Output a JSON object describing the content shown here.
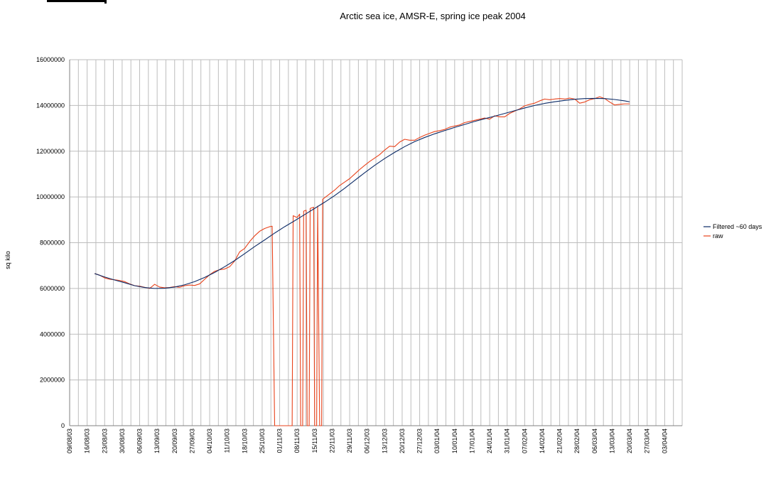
{
  "chart_data": {
    "type": "line",
    "title": "Arctic sea ice, AMSR-E, spring ice peak 2004",
    "xlabel": "",
    "ylabel": "sq kilo",
    "ylim": [
      0,
      16000000
    ],
    "yticks": [
      0,
      2000000,
      4000000,
      6000000,
      8000000,
      10000000,
      12000000,
      14000000,
      16000000
    ],
    "ytick_labels": [
      "0",
      "2000000",
      "4000000",
      "6000000",
      "8000000",
      "10000000",
      "12000000",
      "14000000",
      "16000000"
    ],
    "x_range_days": [
      0,
      245
    ],
    "x_ticks": [
      {
        "day": 0,
        "label": "09/08/03"
      },
      {
        "day": 7,
        "label": "16/08/03"
      },
      {
        "day": 14,
        "label": "23/08/03"
      },
      {
        "day": 21,
        "label": "30/08/03"
      },
      {
        "day": 28,
        "label": "06/09/03"
      },
      {
        "day": 35,
        "label": "13/09/03"
      },
      {
        "day": 42,
        "label": "20/09/03"
      },
      {
        "day": 49,
        "label": "27/09/03"
      },
      {
        "day": 56,
        "label": "04/10/03"
      },
      {
        "day": 63,
        "label": "11/10/03"
      },
      {
        "day": 70,
        "label": "18/10/03"
      },
      {
        "day": 77,
        "label": "25/10/03"
      },
      {
        "day": 84,
        "label": "01/11/03"
      },
      {
        "day": 91,
        "label": "08/11/03"
      },
      {
        "day": 98,
        "label": "15/11/03"
      },
      {
        "day": 105,
        "label": "22/11/03"
      },
      {
        "day": 112,
        "label": "29/11/03"
      },
      {
        "day": 119,
        "label": "06/12/03"
      },
      {
        "day": 126,
        "label": "13/12/03"
      },
      {
        "day": 133,
        "label": "20/12/03"
      },
      {
        "day": 140,
        "label": "27/12/03"
      },
      {
        "day": 147,
        "label": "03/01/04"
      },
      {
        "day": 154,
        "label": "10/01/04"
      },
      {
        "day": 161,
        "label": "17/01/04"
      },
      {
        "day": 168,
        "label": "24/01/04"
      },
      {
        "day": 175,
        "label": "31/01/04"
      },
      {
        "day": 182,
        "label": "07/02/04"
      },
      {
        "day": 189,
        "label": "14/02/04"
      },
      {
        "day": 196,
        "label": "21/02/04"
      },
      {
        "day": 203,
        "label": "28/02/04"
      },
      {
        "day": 210,
        "label": "06/03/04"
      },
      {
        "day": 217,
        "label": "13/03/04"
      },
      {
        "day": 224,
        "label": "20/03/04"
      },
      {
        "day": 231,
        "label": "27/03/04"
      },
      {
        "day": 238,
        "label": "03/04/04"
      }
    ],
    "grid": true,
    "legend_position": "right",
    "series": [
      {
        "name": "Filtered ~60 days",
        "color": "#0b2a66",
        "points": [
          [
            10,
            6650000
          ],
          [
            14,
            6500000
          ],
          [
            18,
            6370000
          ],
          [
            22,
            6250000
          ],
          [
            26,
            6120000
          ],
          [
            30,
            6040000
          ],
          [
            34,
            6000000
          ],
          [
            38,
            6010000
          ],
          [
            42,
            6060000
          ],
          [
            46,
            6160000
          ],
          [
            50,
            6300000
          ],
          [
            54,
            6480000
          ],
          [
            58,
            6700000
          ],
          [
            62,
            6950000
          ],
          [
            66,
            7220000
          ],
          [
            70,
            7520000
          ],
          [
            74,
            7830000
          ],
          [
            78,
            8120000
          ],
          [
            82,
            8420000
          ],
          [
            86,
            8700000
          ],
          [
            90,
            8960000
          ],
          [
            94,
            9230000
          ],
          [
            98,
            9500000
          ],
          [
            102,
            9770000
          ],
          [
            106,
            10060000
          ],
          [
            110,
            10380000
          ],
          [
            114,
            10720000
          ],
          [
            118,
            11060000
          ],
          [
            122,
            11380000
          ],
          [
            126,
            11680000
          ],
          [
            130,
            11950000
          ],
          [
            134,
            12200000
          ],
          [
            138,
            12420000
          ],
          [
            142,
            12600000
          ],
          [
            146,
            12760000
          ],
          [
            150,
            12900000
          ],
          [
            154,
            13040000
          ],
          [
            158,
            13170000
          ],
          [
            162,
            13300000
          ],
          [
            166,
            13420000
          ],
          [
            170,
            13530000
          ],
          [
            174,
            13650000
          ],
          [
            178,
            13770000
          ],
          [
            182,
            13890000
          ],
          [
            186,
            14000000
          ],
          [
            190,
            14090000
          ],
          [
            194,
            14160000
          ],
          [
            198,
            14220000
          ],
          [
            202,
            14270000
          ],
          [
            206,
            14300000
          ],
          [
            210,
            14310000
          ],
          [
            214,
            14300000
          ],
          [
            218,
            14260000
          ],
          [
            222,
            14200000
          ],
          [
            224,
            14160000
          ]
        ]
      },
      {
        "name": "raw",
        "color": "#e8431c",
        "points": [
          [
            10,
            6650000
          ],
          [
            12,
            6580000
          ],
          [
            14,
            6460000
          ],
          [
            16,
            6400000
          ],
          [
            18,
            6380000
          ],
          [
            20,
            6350000
          ],
          [
            22,
            6300000
          ],
          [
            24,
            6200000
          ],
          [
            26,
            6120000
          ],
          [
            28,
            6100000
          ],
          [
            30,
            6050000
          ],
          [
            32,
            6000000
          ],
          [
            34,
            6180000
          ],
          [
            36,
            6060000
          ],
          [
            38,
            6030000
          ],
          [
            40,
            6040000
          ],
          [
            42,
            6080000
          ],
          [
            44,
            6050000
          ],
          [
            46,
            6120000
          ],
          [
            48,
            6150000
          ],
          [
            50,
            6130000
          ],
          [
            52,
            6200000
          ],
          [
            54,
            6400000
          ],
          [
            56,
            6600000
          ],
          [
            58,
            6750000
          ],
          [
            60,
            6820000
          ],
          [
            62,
            6850000
          ],
          [
            64,
            6950000
          ],
          [
            66,
            7200000
          ],
          [
            68,
            7600000
          ],
          [
            70,
            7750000
          ],
          [
            72,
            8050000
          ],
          [
            74,
            8300000
          ],
          [
            76,
            8500000
          ],
          [
            78,
            8620000
          ],
          [
            80,
            8700000
          ],
          [
            81,
            8720000
          ],
          [
            82,
            0
          ],
          [
            82.6,
            0
          ],
          [
            89,
            0
          ],
          [
            89.4,
            9180000
          ],
          [
            91,
            9100000
          ],
          [
            92,
            9250000
          ],
          [
            92.4,
            0
          ],
          [
            93.2,
            0
          ],
          [
            93.6,
            9380000
          ],
          [
            94.6,
            9420000
          ],
          [
            95,
            0
          ],
          [
            95.8,
            0
          ],
          [
            96.2,
            9500000
          ],
          [
            97.6,
            9550000
          ],
          [
            98,
            0
          ],
          [
            98.8,
            0
          ],
          [
            99.2,
            9600000
          ],
          [
            100,
            0
          ],
          [
            100.8,
            0
          ],
          [
            101.2,
            9900000
          ],
          [
            103,
            10050000
          ],
          [
            106,
            10300000
          ],
          [
            108,
            10500000
          ],
          [
            110,
            10650000
          ],
          [
            112,
            10800000
          ],
          [
            114,
            11000000
          ],
          [
            116,
            11200000
          ],
          [
            118,
            11380000
          ],
          [
            120,
            11550000
          ],
          [
            122,
            11700000
          ],
          [
            124,
            11850000
          ],
          [
            126,
            12050000
          ],
          [
            128,
            12220000
          ],
          [
            130,
            12200000
          ],
          [
            132,
            12400000
          ],
          [
            134,
            12520000
          ],
          [
            136,
            12480000
          ],
          [
            138,
            12480000
          ],
          [
            140,
            12600000
          ],
          [
            142,
            12700000
          ],
          [
            144,
            12780000
          ],
          [
            146,
            12860000
          ],
          [
            148,
            12900000
          ],
          [
            150,
            12950000
          ],
          [
            152,
            13050000
          ],
          [
            154,
            13100000
          ],
          [
            156,
            13150000
          ],
          [
            158,
            13250000
          ],
          [
            160,
            13300000
          ],
          [
            162,
            13350000
          ],
          [
            164,
            13400000
          ],
          [
            166,
            13450000
          ],
          [
            168,
            13400000
          ],
          [
            170,
            13550000
          ],
          [
            172,
            13500000
          ],
          [
            174,
            13500000
          ],
          [
            176,
            13650000
          ],
          [
            178,
            13750000
          ],
          [
            180,
            13850000
          ],
          [
            182,
            13980000
          ],
          [
            184,
            14050000
          ],
          [
            186,
            14100000
          ],
          [
            188,
            14200000
          ],
          [
            190,
            14280000
          ],
          [
            192,
            14250000
          ],
          [
            194,
            14280000
          ],
          [
            196,
            14300000
          ],
          [
            198,
            14280000
          ],
          [
            200,
            14320000
          ],
          [
            202,
            14280000
          ],
          [
            204,
            14100000
          ],
          [
            206,
            14150000
          ],
          [
            208,
            14250000
          ],
          [
            210,
            14300000
          ],
          [
            212,
            14380000
          ],
          [
            214,
            14300000
          ],
          [
            216,
            14150000
          ],
          [
            218,
            14020000
          ],
          [
            220,
            14050000
          ],
          [
            222,
            14070000
          ],
          [
            224,
            14070000
          ]
        ]
      }
    ]
  },
  "legend": {
    "items": [
      {
        "label": "Filtered ~60 days",
        "color": "#0b2a66"
      },
      {
        "label": "raw",
        "color": "#e8431c"
      }
    ]
  },
  "colors": {
    "grid": "#bdbdbd",
    "axis": "#808080",
    "text": "#000000"
  }
}
